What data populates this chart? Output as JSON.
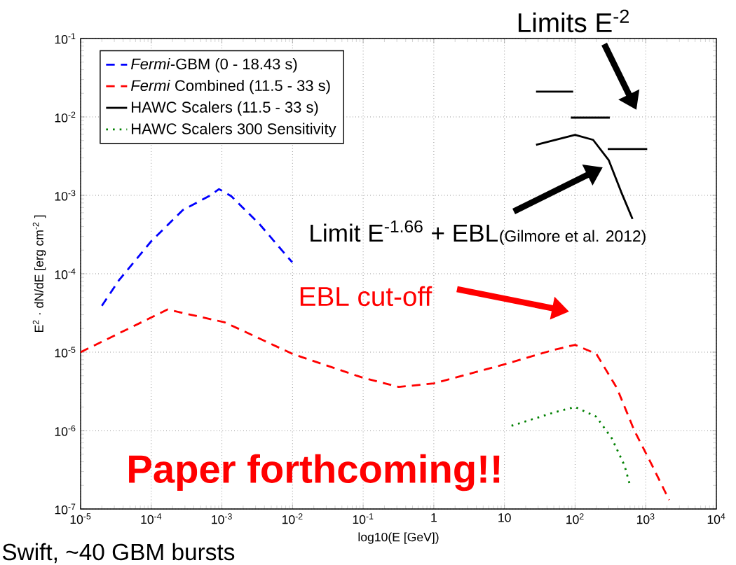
{
  "chart_data": {
    "type": "line",
    "xlabel": "log10(E [GeV])",
    "ylabel": "E$^{2}$ · dN/dE [erg cm$^{-2}$ ]",
    "log": "xy",
    "xlim": [
      1e-05,
      10000
    ],
    "ylim": [
      1e-07,
      0.1
    ],
    "xticks": [
      {
        "value": 1e-05,
        "label": "10$^{-5}$"
      },
      {
        "value": 0.0001,
        "label": "10$^{-4}$"
      },
      {
        "value": 0.001,
        "label": "10$^{-3}$"
      },
      {
        "value": 0.01,
        "label": "10$^{-2}$"
      },
      {
        "value": 0.1,
        "label": "10$^{-1}$"
      },
      1,
      10,
      {
        "value": 100,
        "label": "10$^{2}$"
      },
      {
        "value": 1000,
        "label": "10$^{3}$"
      },
      {
        "value": 10000,
        "label": "10$^{4}$"
      }
    ],
    "yticks": [
      {
        "value": 1e-07,
        "label": "10$^{-7}$"
      },
      {
        "value": 1e-06,
        "label": "10$^{-6}$"
      },
      {
        "value": 1e-05,
        "label": "10$^{-5}$"
      },
      {
        "value": 0.0001,
        "label": "10$^{-4}$"
      },
      {
        "value": 0.001,
        "label": "10$^{-3}$"
      },
      {
        "value": 0.01,
        "label": "10$^{-2}$"
      },
      {
        "value": 0.1,
        "label": "10$^{-1}$"
      }
    ],
    "grid": true,
    "legend": "top left",
    "marker": "none",
    "series": [
      {
        "name": "*Fermi*-GBM (0 - 18.43 s)",
        "color": "#0000ff",
        "line_style": "dashed",
        "x": [
          2e-05,
          3.5e-05,
          0.0001,
          0.00028,
          0.00069,
          0.00091,
          0.00135,
          0.0034,
          0.0099
        ],
        "values": [
          3.9e-05,
          8.3e-05,
          0.00026,
          0.00065,
          0.001,
          0.0012,
          0.00098,
          0.00043,
          0.00014
        ]
      },
      {
        "name": "*Fermi* Combined (11.5 - 33 s)",
        "color": "#ff0000",
        "line_style": "dashed",
        "x": [
          1e-05,
          0.00017,
          0.0011,
          0.01,
          0.1,
          0.32,
          1,
          10,
          50,
          100,
          200,
          390,
          690,
          1230,
          2150
        ],
        "values": [
          1e-05,
          3.5e-05,
          2.4e-05,
          9.5e-06,
          4.7e-06,
          3.6e-06,
          4e-06,
          7e-06,
          1.07e-05,
          1.24e-05,
          9.5e-06,
          3.5e-06,
          1e-06,
          3.6e-07,
          1.3e-07
        ]
      },
      {
        "name": "HAWC Scalers (11.5 - 33 s)",
        "color": "#000000",
        "line_style": "solid",
        "x": [
          28,
          100,
          180,
          300,
          450,
          650
        ],
        "values": [
          0.0044,
          0.0059,
          0.0051,
          0.0028,
          0.0011,
          0.0005
        ]
      },
      {
        "name": "HAWC Scalers 300 Sensitivity",
        "color": "#008000",
        "line_style": "dotted",
        "x": [
          12.6,
          50,
          100,
          200,
          330,
          500,
          600
        ],
        "values": [
          1.15e-06,
          1.7e-06,
          2e-06,
          1.5e-06,
          8e-07,
          3.6e-07,
          2e-07
        ]
      },
      {
        "color": "#000000",
        "line_style": "solid",
        "x": [
          28,
          94
        ],
        "values": [
          0.021,
          0.021
        ]
      },
      {
        "color": "#000000",
        "line_style": "solid",
        "x": [
          87,
          310
        ],
        "values": [
          0.0098,
          0.0098
        ]
      },
      {
        "color": "#000000",
        "line_style": "solid",
        "x": [
          290,
          1050
        ],
        "values": [
          0.0039,
          0.0039
        ]
      }
    ],
    "annotations": [
      "Limits E$^{-2}$",
      "Limit E$^{-1.66}$ + EBL",
      "(Gilmore et al. 2012)",
      "EBL cut-off",
      "Paper forthcoming!!",
      "Swift, ~40 GBM bursts"
    ]
  }
}
